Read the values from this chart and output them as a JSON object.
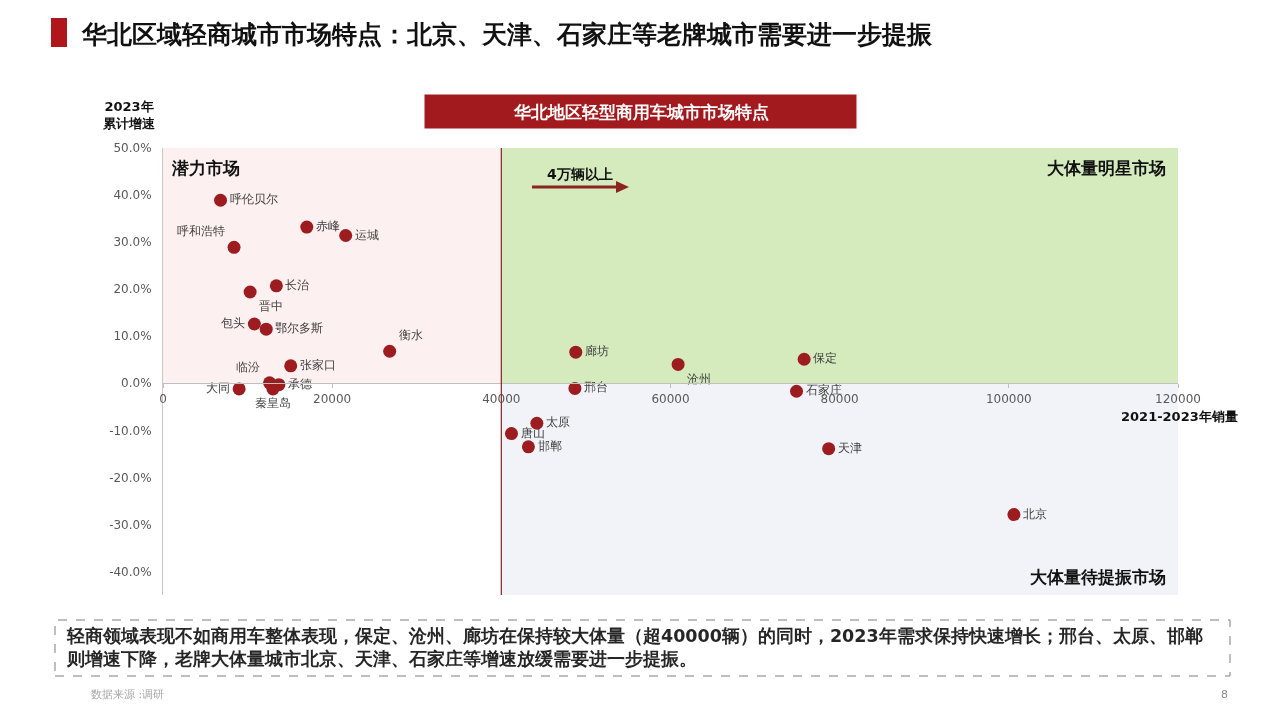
{
  "chart_data": {
    "type": "scatter",
    "title": "华北区域轻商城市市场特点：北京、天津、石家庄等老牌城市需要进一步提振",
    "subtitle": "华北地区轻型商用车城市市场特点",
    "xlabel": "2021-2023年销量",
    "ylabel": "2023年累计增速",
    "marker": "circle",
    "xlim": [
      0,
      120000
    ],
    "xticks": [
      0,
      20000,
      40000,
      60000,
      80000,
      100000,
      120000
    ],
    "ylim": [
      -45,
      50
    ],
    "yticks": [
      {
        "value": -40,
        "label": "-40.0%"
      },
      {
        "value": -30,
        "label": "-30.0%"
      },
      {
        "value": -20,
        "label": "-20.0%"
      },
      {
        "value": -10,
        "label": "-10.0%"
      },
      {
        "value": 0,
        "label": "0.0%"
      },
      {
        "value": 10,
        "label": "10.0%"
      },
      {
        "value": 20,
        "label": "20.0%"
      },
      {
        "value": 30,
        "label": "30.0%"
      },
      {
        "value": 40,
        "label": "40.0%"
      },
      {
        "value": 50,
        "label": "50.0%"
      }
    ],
    "series": [
      {
        "name": "呼伦贝尔",
        "color": "#9c1c1f",
        "x": [
          6800
        ],
        "values": [
          38.9
        ]
      },
      {
        "name": "呼和浩特",
        "color": "#9c1c1f",
        "x": [
          8400
        ],
        "values": [
          28.9
        ]
      },
      {
        "name": "赤峰",
        "color": "#9c1c1f",
        "x": [
          17000
        ],
        "values": [
          33.2
        ]
      },
      {
        "name": "运城",
        "color": "#9c1c1f",
        "x": [
          21600
        ],
        "values": [
          31.4
        ]
      },
      {
        "name": "长治",
        "color": "#9c1c1f",
        "x": [
          13400
        ],
        "values": [
          20.7
        ]
      },
      {
        "name": "晋中",
        "color": "#9c1c1f",
        "x": [
          10300
        ],
        "values": [
          19.4
        ]
      },
      {
        "name": "包头",
        "color": "#9c1c1f",
        "x": [
          10800
        ],
        "values": [
          12.6
        ]
      },
      {
        "name": "鄂尔多斯",
        "color": "#9c1c1f",
        "x": [
          12200
        ],
        "values": [
          11.5
        ]
      },
      {
        "name": "衡水",
        "color": "#9c1c1f",
        "x": [
          26800
        ],
        "values": [
          6.8
        ]
      },
      {
        "name": "张家口",
        "color": "#9c1c1f",
        "x": [
          15100
        ],
        "values": [
          3.7
        ]
      },
      {
        "name": "临汾",
        "color": "#9c1c1f",
        "x": [
          12600
        ],
        "values": [
          0.1
        ]
      },
      {
        "name": "承德",
        "color": "#9c1c1f",
        "x": [
          13700
        ],
        "values": [
          -0.3
        ]
      },
      {
        "name": "秦皇岛",
        "color": "#9c1c1f",
        "x": [
          13000
        ],
        "values": [
          -1.2
        ]
      },
      {
        "name": "大同",
        "color": "#9c1c1f",
        "x": [
          9000
        ],
        "values": [
          -1.2
        ]
      },
      {
        "name": "廊坊",
        "color": "#9c1c1f",
        "x": [
          48800
        ],
        "values": [
          6.6
        ]
      },
      {
        "name": "邢台",
        "color": "#9c1c1f",
        "x": [
          48700
        ],
        "values": [
          -1.1
        ]
      },
      {
        "name": "沧州",
        "color": "#9c1c1f",
        "x": [
          60900
        ],
        "values": [
          4.0
        ]
      },
      {
        "name": "保定",
        "color": "#9c1c1f",
        "x": [
          75800
        ],
        "values": [
          5.1
        ]
      },
      {
        "name": "石家庄",
        "color": "#9c1c1f",
        "x": [
          74900
        ],
        "values": [
          -1.7
        ]
      },
      {
        "name": "太原",
        "color": "#9c1c1f",
        "x": [
          44200
        ],
        "values": [
          -8.5
        ]
      },
      {
        "name": "唐山",
        "color": "#9c1c1f",
        "x": [
          41200
        ],
        "values": [
          -10.7
        ]
      },
      {
        "name": "邯郸",
        "color": "#9c1c1f",
        "x": [
          43200
        ],
        "values": [
          -13.5
        ]
      },
      {
        "name": "天津",
        "color": "#9c1c1f",
        "x": [
          78700
        ],
        "values": [
          -13.9
        ]
      },
      {
        "name": "北京",
        "color": "#9c1c1f",
        "x": [
          100600
        ],
        "values": [
          -27.9
        ]
      }
    ],
    "ref_lines": [
      {
        "axis": "x",
        "value": 40000,
        "color": "#8b2323"
      }
    ],
    "bands": [
      {
        "axis": "x",
        "from": 0,
        "to": 40000,
        "label": "潜力市场",
        "color": "#fdf0f0"
      },
      {
        "axis": "x",
        "from": 40000,
        "to": 120000,
        "label": "大体量明星市场",
        "color": "#d5ebbd"
      },
      {
        "axis": "x",
        "from": 40000,
        "to": 120000,
        "label": "大体量待提振市场",
        "color": "#f2f3f8"
      }
    ],
    "annotations": [
      "4万辆以上",
      "轻商领域表现不如商用车整体表现，保定、沧州、廊坊在保持较大体量（超40000辆）的同时，2023年需求保持快速增长；邢台、太原、邯郸则增速下降，老牌大体量城市北京、天津、石家庄等增速放缓需要进一步提振。",
      "数据来源 :调研",
      "8"
    ]
  }
}
